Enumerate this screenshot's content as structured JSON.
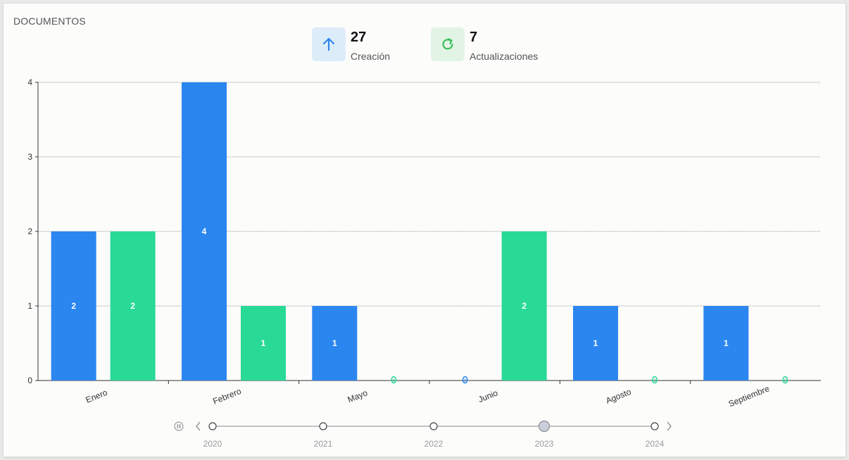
{
  "title": "DOCUMENTOS",
  "stats": [
    {
      "value": "27",
      "label": "Creación",
      "icon": "arrow-up-icon",
      "color": "#2f86eb",
      "bg": "#dcecf9"
    },
    {
      "value": "7",
      "label": "Actualizaciones",
      "icon": "refresh-icon",
      "color": "#3cbf5b",
      "bg": "#e2f5e5"
    }
  ],
  "colors": {
    "creacion": "#2b86f0",
    "actualizaciones": "#29d996"
  },
  "chart_data": {
    "type": "bar",
    "categories": [
      "Enero",
      "Febrero",
      "Mayo",
      "Junio",
      "Agosto",
      "Septiembre"
    ],
    "series": [
      {
        "values": [
          2,
          4,
          1,
          0,
          1,
          1
        ]
      },
      {
        "values": [
          2,
          1,
          0,
          2,
          0,
          0
        ]
      }
    ],
    "ylim": [
      0,
      4
    ],
    "yticks": [
      0,
      1,
      2,
      3,
      4
    ],
    "grid": true,
    "title": "",
    "xlabel": "",
    "ylabel": ""
  },
  "timeline": {
    "years": [
      "2020",
      "2021",
      "2022",
      "2023",
      "2024"
    ],
    "selected": "2023"
  }
}
